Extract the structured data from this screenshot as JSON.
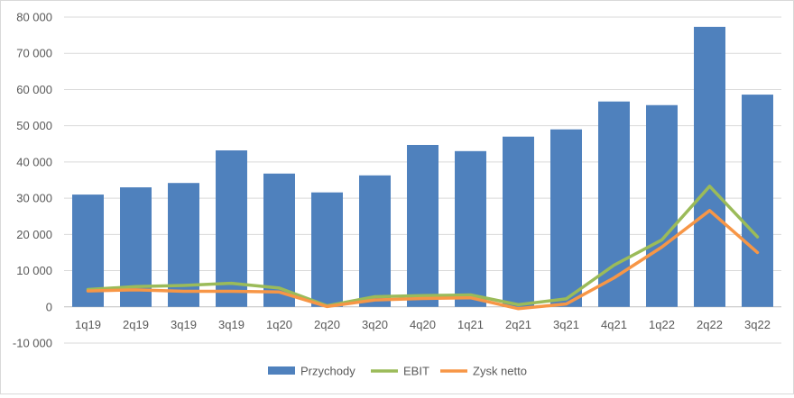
{
  "chart_data": {
    "type": "bar",
    "title": "",
    "xlabel": "",
    "ylabel": "",
    "categories": [
      "1q19",
      "2q19",
      "3q19",
      "3q19",
      "1q20",
      "2q20",
      "3q20",
      "4q20",
      "1q21",
      "2q21",
      "3q21",
      "4q21",
      "1q22",
      "2q22",
      "3q22"
    ],
    "ylim": [
      -10000,
      80000
    ],
    "yticks": [
      -10000,
      0,
      10000,
      20000,
      30000,
      40000,
      50000,
      60000,
      70000,
      80000
    ],
    "ytick_labels": [
      "-10 000",
      "0",
      "10 000",
      "20 000",
      "30 000",
      "40 000",
      "50 000",
      "60 000",
      "70 000",
      "80 000"
    ],
    "grid": true,
    "legend_position": "bottom",
    "series": [
      {
        "name": "Przychody",
        "kind": "bar",
        "color": "#4f81bd",
        "values": [
          31000,
          33000,
          34200,
          43200,
          36800,
          31600,
          36300,
          44700,
          43000,
          47000,
          49000,
          56700,
          55700,
          77300,
          58600
        ]
      },
      {
        "name": "EBIT",
        "kind": "line",
        "color": "#9bbb59",
        "values": [
          4800,
          5600,
          5900,
          6500,
          5200,
          300,
          2800,
          3100,
          3300,
          600,
          2200,
          11500,
          18500,
          33300,
          19300
        ]
      },
      {
        "name": "Zysk netto",
        "kind": "line",
        "color": "#f79646",
        "values": [
          4400,
          4700,
          4300,
          4300,
          4100,
          100,
          1900,
          2300,
          2500,
          -500,
          800,
          8000,
          16500,
          26600,
          15000
        ]
      }
    ]
  }
}
